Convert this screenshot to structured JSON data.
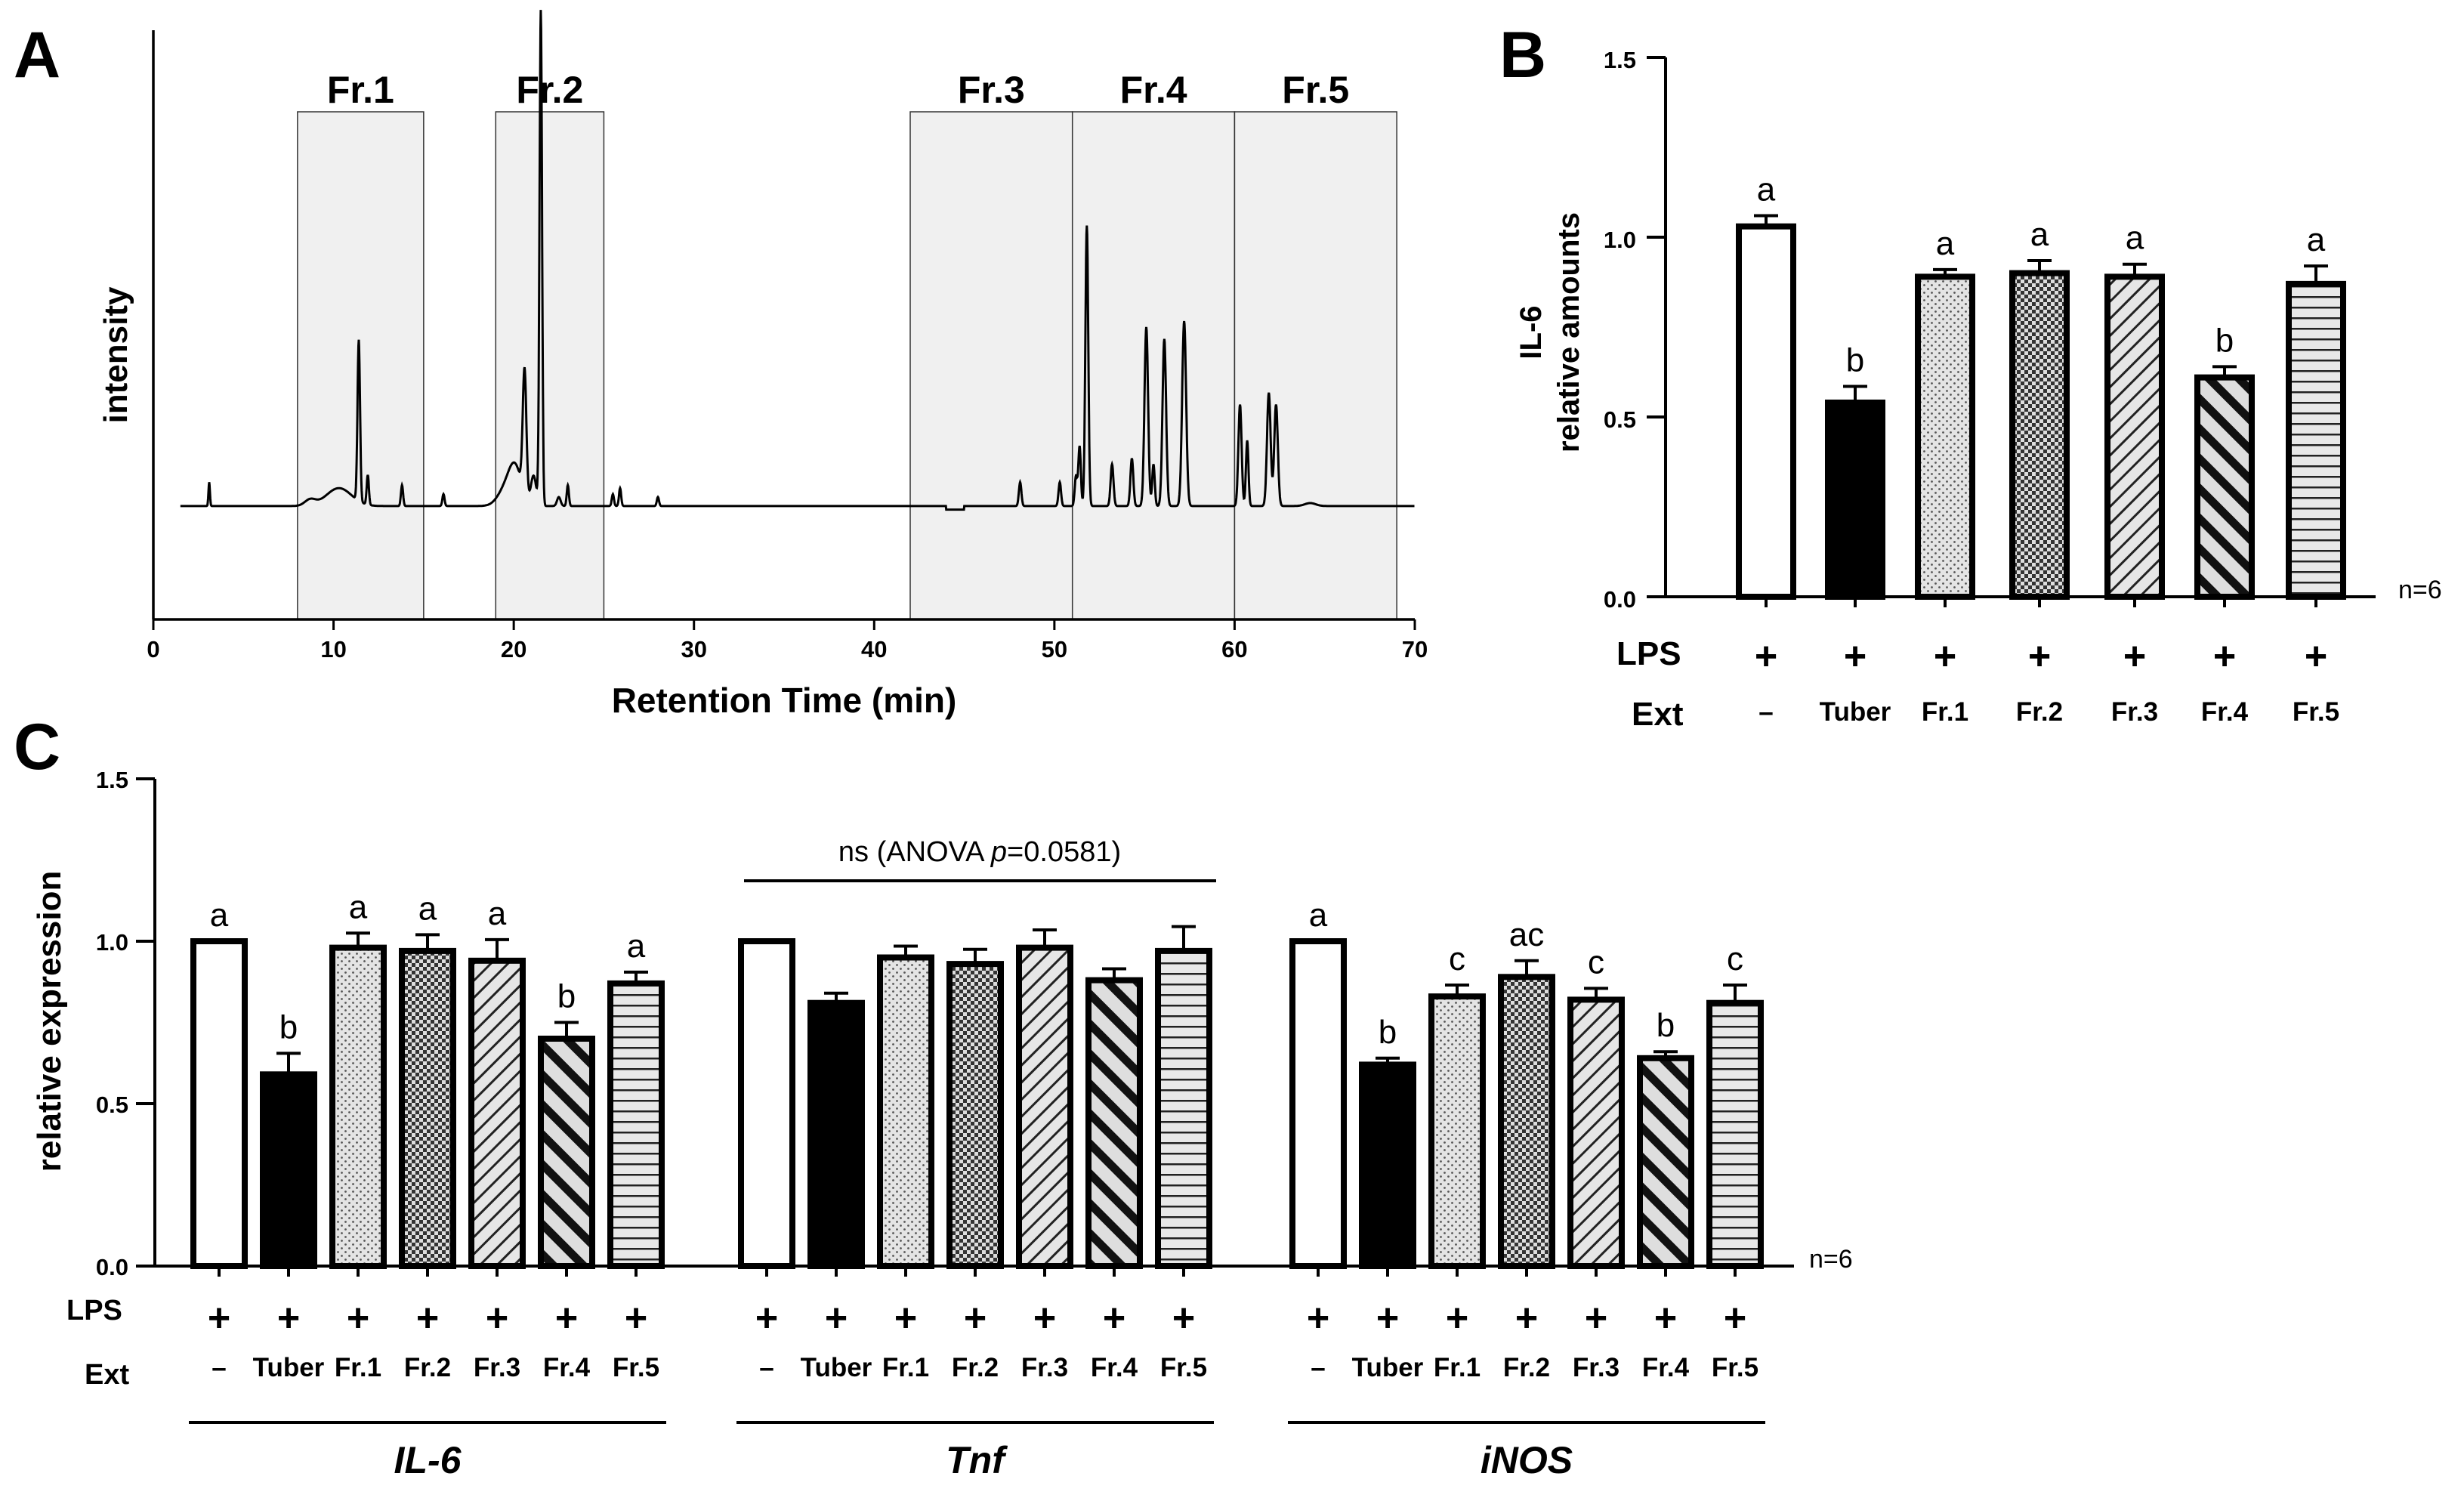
{
  "panel_labels": {
    "a": "A",
    "b": "B",
    "c": "C"
  },
  "chart_data": [
    {
      "id": "A",
      "type": "line",
      "title": "",
      "xlabel": "Retention Time (min)",
      "ylabel": "intensity",
      "xlim": [
        0,
        70
      ],
      "xticks": [
        "0",
        "10",
        "20",
        "30",
        "40",
        "50",
        "60",
        "70"
      ],
      "ylim": [
        0,
        1
      ],
      "yticks_visible": false,
      "fractions": [
        {
          "label": "Fr.1",
          "start": 8,
          "end": 15
        },
        {
          "label": "Fr.2",
          "start": 19,
          "end": 25
        },
        {
          "label": "Fr.3",
          "start": 42,
          "end": 51
        },
        {
          "label": "Fr.4",
          "start": 51,
          "end": 60
        },
        {
          "label": "Fr.5",
          "start": 60,
          "end": 69
        }
      ],
      "chromatogram": {
        "baseline": 0.19,
        "peaks": [
          {
            "x": 3.1,
            "h": 0.04,
            "w": 0.04
          },
          {
            "x": 8.7,
            "h": 0.01,
            "w": 0.3
          },
          {
            "x": 10.3,
            "h": 0.03,
            "w": 0.7
          },
          {
            "x": 11.4,
            "h": 0.27,
            "w": 0.07
          },
          {
            "x": 11.9,
            "h": 0.05,
            "w": 0.06
          },
          {
            "x": 13.8,
            "h": 0.035,
            "w": 0.06
          },
          {
            "x": 16.1,
            "h": 0.02,
            "w": 0.06
          },
          {
            "x": 19.6,
            "h": 0.03,
            "w": 0.45
          },
          {
            "x": 20.1,
            "h": 0.055,
            "w": 0.35
          },
          {
            "x": 20.6,
            "h": 0.21,
            "w": 0.1
          },
          {
            "x": 21.1,
            "h": 0.05,
            "w": 0.15
          },
          {
            "x": 21.5,
            "h": 0.83,
            "w": 0.07
          },
          {
            "x": 22.5,
            "h": 0.015,
            "w": 0.1
          },
          {
            "x": 23.0,
            "h": 0.035,
            "w": 0.06
          },
          {
            "x": 25.5,
            "h": 0.02,
            "w": 0.06
          },
          {
            "x": 25.9,
            "h": 0.03,
            "w": 0.06
          },
          {
            "x": 28.0,
            "h": 0.015,
            "w": 0.06
          },
          {
            "x": 48.1,
            "h": 0.04,
            "w": 0.07
          },
          {
            "x": 50.3,
            "h": 0.04,
            "w": 0.07
          },
          {
            "x": 51.2,
            "h": 0.05,
            "w": 0.07
          },
          {
            "x": 51.4,
            "h": 0.1,
            "w": 0.07
          },
          {
            "x": 51.8,
            "h": 0.47,
            "w": 0.08
          },
          {
            "x": 53.2,
            "h": 0.07,
            "w": 0.08
          },
          {
            "x": 54.3,
            "h": 0.08,
            "w": 0.08
          },
          {
            "x": 55.1,
            "h": 0.3,
            "w": 0.1
          },
          {
            "x": 55.5,
            "h": 0.07,
            "w": 0.07
          },
          {
            "x": 56.1,
            "h": 0.28,
            "w": 0.1
          },
          {
            "x": 57.2,
            "h": 0.31,
            "w": 0.11
          },
          {
            "x": 60.3,
            "h": 0.17,
            "w": 0.09
          },
          {
            "x": 60.7,
            "h": 0.11,
            "w": 0.07
          },
          {
            "x": 61.9,
            "h": 0.19,
            "w": 0.1
          },
          {
            "x": 62.3,
            "h": 0.17,
            "w": 0.1
          },
          {
            "x": 64.2,
            "h": 0.005,
            "w": 0.3
          }
        ]
      }
    },
    {
      "id": "B",
      "type": "bar",
      "title": "",
      "ylabel": "IL-6\nrelative amounts",
      "ylim": [
        0,
        1.5
      ],
      "yticks": [
        "0.0",
        "0.5",
        "1.0",
        "1.5"
      ],
      "categories": [
        "–",
        "Tuber",
        "Fr.1",
        "Fr.2",
        "Fr.3",
        "Fr.4",
        "Fr.5"
      ],
      "lps": [
        "+",
        "+",
        "+",
        "+",
        "+",
        "+",
        "+"
      ],
      "values": [
        1.03,
        0.54,
        0.89,
        0.9,
        0.89,
        0.61,
        0.87
      ],
      "errors": [
        0.03,
        0.045,
        0.02,
        0.035,
        0.035,
        0.03,
        0.05
      ],
      "letters": [
        "a",
        "b",
        "a",
        "a",
        "a",
        "b",
        "a"
      ],
      "row_labels": {
        "lps": "LPS",
        "ext": "Ext"
      },
      "note": "n=6"
    },
    {
      "id": "C",
      "type": "bar",
      "title": "",
      "ylabel": "relative expression",
      "ylim": [
        0,
        1.5
      ],
      "yticks": [
        "0.0",
        "0.5",
        "1.0",
        "1.5"
      ],
      "categories": [
        "–",
        "Tuber",
        "Fr.1",
        "Fr.2",
        "Fr.3",
        "Fr.4",
        "Fr.5"
      ],
      "row_labels": {
        "lps": "LPS",
        "ext": "Ext"
      },
      "note": "n=6",
      "ns_annotation": {
        "prefix": "ns (ANOVA ",
        "p": "p",
        "suffix": "=0.0581)"
      },
      "series": [
        {
          "name": "IL-6",
          "values": [
            1.0,
            0.59,
            0.98,
            0.97,
            0.94,
            0.7,
            0.87
          ],
          "errors": [
            0,
            0.065,
            0.045,
            0.05,
            0.065,
            0.05,
            0.035
          ],
          "letters": [
            "a",
            "b",
            "a",
            "a",
            "a",
            "b",
            "a"
          ]
        },
        {
          "name": "Tnf",
          "values": [
            1.0,
            0.81,
            0.95,
            0.93,
            0.98,
            0.88,
            0.97
          ],
          "errors": [
            0,
            0.03,
            0.035,
            0.045,
            0.055,
            0.035,
            0.075
          ],
          "letters": [
            "",
            "",
            "",
            "",
            "",
            "",
            ""
          ]
        },
        {
          "name": "iNOS",
          "values": [
            1.0,
            0.62,
            0.83,
            0.89,
            0.82,
            0.64,
            0.81
          ],
          "errors": [
            0,
            0.02,
            0.035,
            0.05,
            0.035,
            0.02,
            0.055
          ],
          "letters": [
            "a",
            "b",
            "c",
            "ac",
            "c",
            "b",
            "c"
          ]
        }
      ]
    }
  ]
}
